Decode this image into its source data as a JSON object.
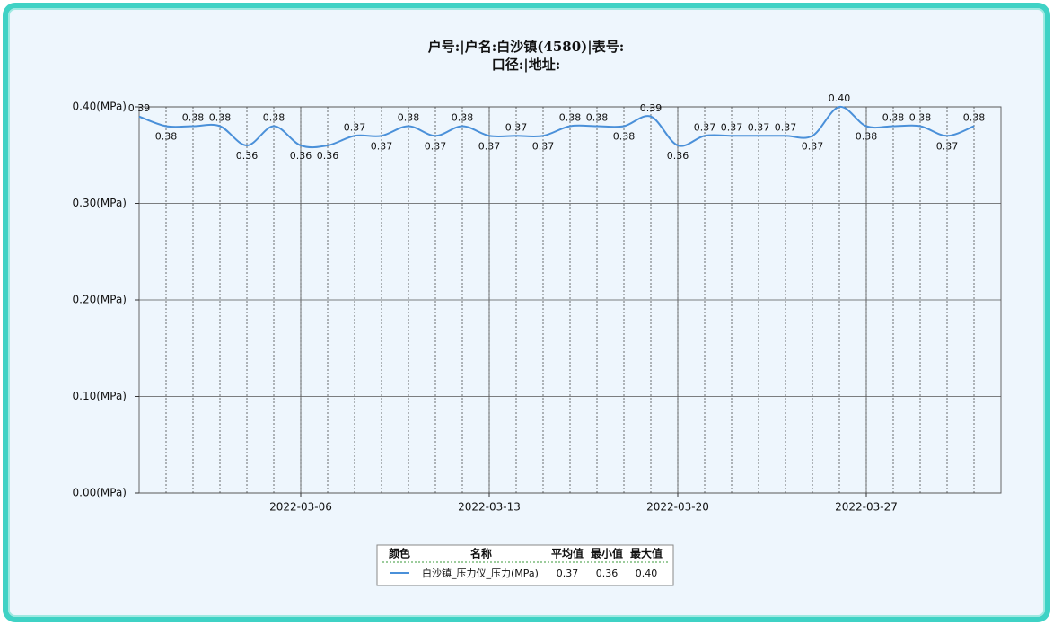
{
  "chart_data": {
    "type": "line",
    "title": "户号:|户名:白沙镇(4580)|表号:",
    "subtitle": "口径:|地址:",
    "x": [
      "2022-02-28",
      "2022-03-01",
      "2022-03-02",
      "2022-03-03",
      "2022-03-04",
      "2022-03-05",
      "2022-03-06",
      "2022-03-07",
      "2022-03-08",
      "2022-03-09",
      "2022-03-10",
      "2022-03-11",
      "2022-03-12",
      "2022-03-13",
      "2022-03-14",
      "2022-03-15",
      "2022-03-16",
      "2022-03-17",
      "2022-03-18",
      "2022-03-19",
      "2022-03-20",
      "2022-03-21",
      "2022-03-22",
      "2022-03-23",
      "2022-03-24",
      "2022-03-25",
      "2022-03-26",
      "2022-03-27",
      "2022-03-28",
      "2022-03-29",
      "2022-03-30",
      "2022-03-31"
    ],
    "series": [
      {
        "name": "白沙镇_压力仪_压力(MPa)",
        "color": "#4a90d9",
        "values": [
          0.39,
          0.38,
          0.38,
          0.38,
          0.36,
          0.38,
          0.36,
          0.36,
          0.37,
          0.37,
          0.38,
          0.37,
          0.38,
          0.37,
          0.37,
          0.37,
          0.38,
          0.38,
          0.38,
          0.39,
          0.36,
          0.37,
          0.37,
          0.37,
          0.37,
          0.37,
          0.4,
          0.38,
          0.38,
          0.38,
          0.37,
          0.38
        ],
        "value_labels": [
          "0.39",
          "0.38",
          "0.38",
          "0.38",
          "0.36",
          "0.38",
          "0.36",
          "0.36",
          "0.37",
          "0.37",
          "0.38",
          "0.37",
          "0.38",
          "0.37",
          "0.37",
          "0.37",
          "0.38",
          "0.38",
          "0.38",
          "0.39",
          "0.36",
          "0.37",
          "0.37",
          "0.37",
          "0.37",
          "0.37",
          "0.40",
          "0.38",
          "0.38",
          "0.38",
          "0.37",
          "0.38"
        ]
      }
    ],
    "xlim": [
      "2022-02-28",
      "2022-04-01"
    ],
    "xticks": [
      "2022-03-06",
      "2022-03-13",
      "2022-03-20",
      "2022-03-27"
    ],
    "ylim": [
      0,
      0.4
    ],
    "yticks": [
      {
        "value": 0,
        "label": "0.00(MPa)"
      },
      {
        "value": 0.1,
        "label": "0.10(MPa)"
      },
      {
        "value": 0.2,
        "label": "0.20(MPa)"
      },
      {
        "value": 0.3,
        "label": "0.30(MPa)"
      },
      {
        "value": 0.4,
        "label": "0.40(MPa)"
      }
    ],
    "grid": true,
    "legend_table": {
      "headers": [
        "颜色",
        "名称",
        "平均值",
        "最小值",
        "最大值"
      ],
      "row": [
        "0.37",
        "0.36",
        "0.40"
      ]
    }
  }
}
